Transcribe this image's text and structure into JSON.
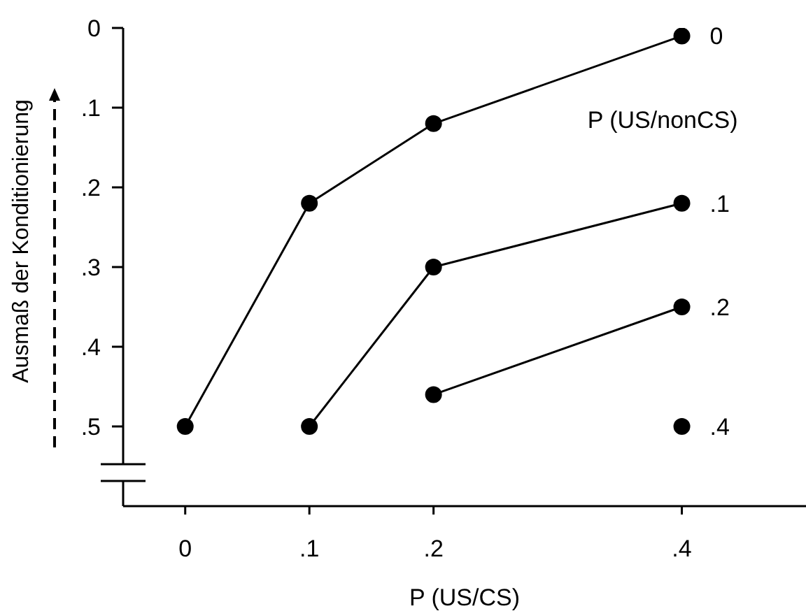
{
  "chart_data": {
    "type": "line",
    "xlabel": "P (US/CS)",
    "ylabel": "Ausmaß der Konditionierung",
    "legend_title": "P (US/nonCS)",
    "xlim": [
      -0.05,
      0.5
    ],
    "xticks": [
      0,
      {
        "value": 0.1,
        "label": ".1"
      },
      {
        "value": 0.2,
        "label": ".2"
      },
      {
        "value": 0.4,
        "label": ".4"
      }
    ],
    "ylim": [
      0.6,
      0
    ],
    "yticks": [
      0,
      {
        "value": 0.1,
        "label": ".1"
      },
      {
        "value": 0.2,
        "label": ".2"
      },
      {
        "value": 0.3,
        "label": ".3"
      },
      {
        "value": 0.4,
        "label": ".4"
      },
      {
        "value": 0.5,
        "label": ".5"
      }
    ],
    "marker": "circle",
    "line_style": "solid",
    "legend": false,
    "grid": false,
    "series": [
      {
        "name": "0",
        "color": "#000000",
        "x": [
          0,
          0.1,
          0.2,
          0.4
        ],
        "values": [
          0.5,
          0.22,
          0.12,
          0.01
        ]
      },
      {
        "name": ".1",
        "color": "#000000",
        "x": [
          0.1,
          0.2,
          0.4
        ],
        "values": [
          0.5,
          0.3,
          0.22
        ]
      },
      {
        "name": ".2",
        "color": "#000000",
        "x": [
          0.2,
          0.4
        ],
        "values": [
          0.46,
          0.35
        ]
      },
      {
        "name": ".4",
        "color": "#000000",
        "x": [
          0.4
        ],
        "values": [
          0.5
        ]
      }
    ]
  }
}
